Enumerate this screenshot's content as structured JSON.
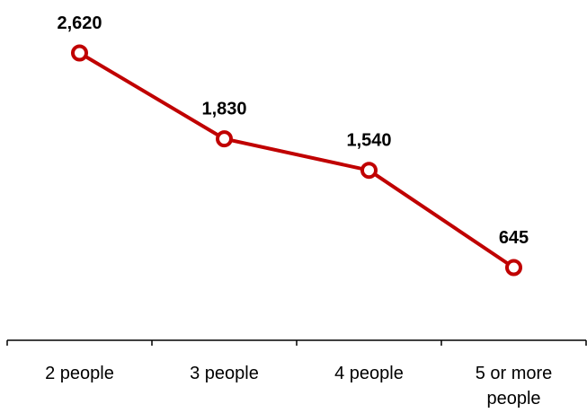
{
  "chart_data": {
    "type": "line",
    "categories": [
      "2 people",
      "3 people",
      "4 people",
      "5 or more people"
    ],
    "category_lines": [
      [
        "2 people"
      ],
      [
        "3 people"
      ],
      [
        "4 people"
      ],
      [
        "5 or more",
        "people"
      ]
    ],
    "values": [
      2620,
      1830,
      1540,
      645
    ],
    "data_labels": [
      "2,620",
      "1,830",
      "1,540",
      "645"
    ],
    "title": "",
    "xlabel": "",
    "ylabel": "",
    "grid": false,
    "legend": "none",
    "colors": {
      "line": "#c00000",
      "marker_fill": "#ffffff",
      "axis": "#000000"
    }
  }
}
